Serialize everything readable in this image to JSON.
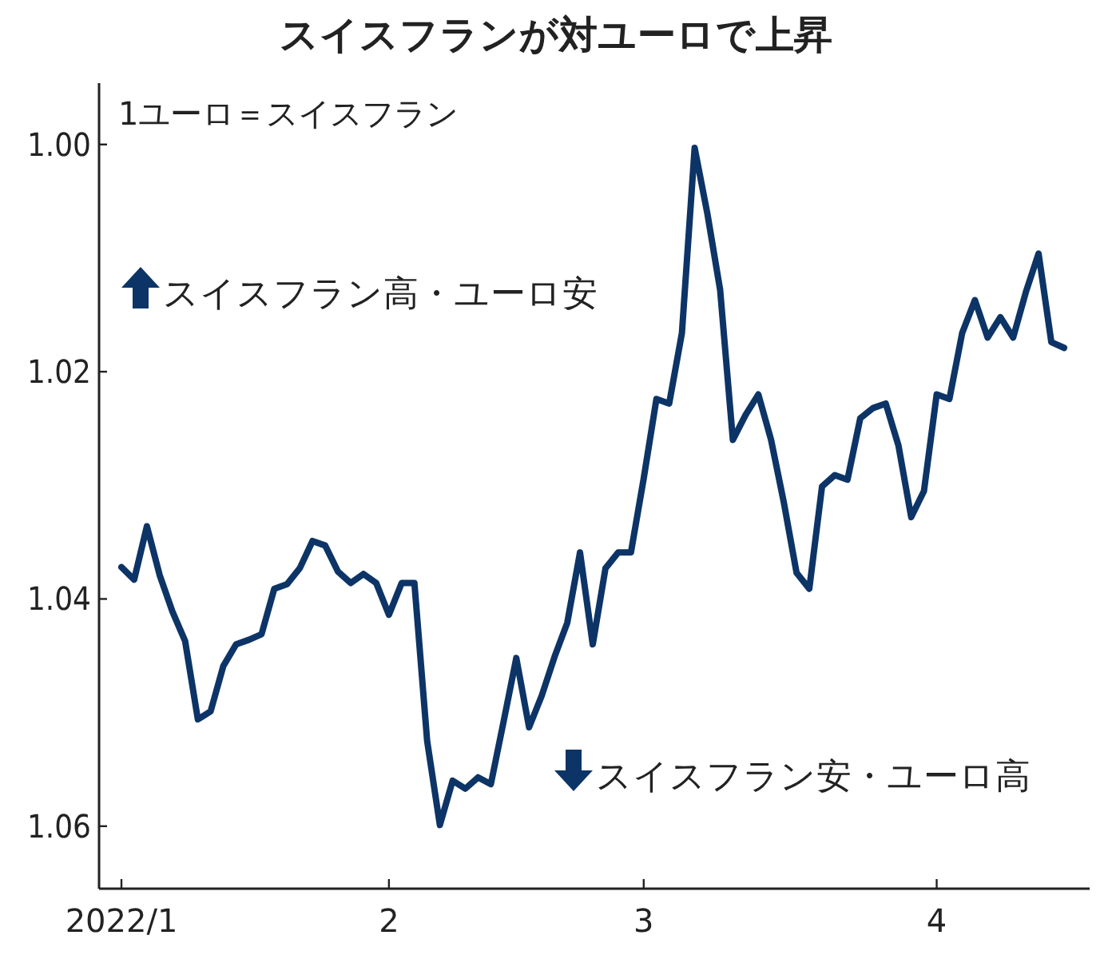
{
  "chart_data": {
    "type": "line",
    "title": "スイスフランが対ユーロで上昇",
    "subtitle": "1ユーロ＝スイスフラン",
    "annotations": [
      "スイスフラン高・ユーロ安",
      "スイスフラン安・ユーロ高"
    ],
    "categories": [
      "2022/1",
      null,
      null,
      null,
      null,
      null,
      null,
      null,
      null,
      null,
      null,
      null,
      null,
      null,
      null,
      null,
      null,
      null,
      null,
      null,
      null,
      "2",
      null,
      null,
      null,
      null,
      null,
      null,
      null,
      null,
      null,
      null,
      null,
      null,
      null,
      null,
      null,
      null,
      null,
      null,
      null,
      "3",
      null,
      null,
      null,
      null,
      null,
      null,
      null,
      null,
      null,
      null,
      null,
      null,
      null,
      null,
      null,
      null,
      null,
      null,
      null,
      null,
      null,
      null,
      "4",
      null,
      null,
      null,
      null,
      null,
      null,
      null,
      null,
      null,
      null
    ],
    "series": [
      {
        "color": "#0d3466",
        "values": [
          1.0372,
          1.0383,
          1.0336,
          1.0379,
          1.0411,
          1.0437,
          1.0506,
          1.0499,
          1.0459,
          1.044,
          1.0436,
          1.0431,
          1.0391,
          1.0387,
          1.0373,
          1.0349,
          1.0353,
          1.0376,
          1.0386,
          1.0378,
          1.0386,
          1.0414,
          1.0386,
          1.0386,
          1.0525,
          1.0599,
          1.056,
          1.0567,
          1.0557,
          1.0563,
          1.0508,
          1.0452,
          1.0513,
          1.0485,
          1.0451,
          1.0421,
          1.0359,
          1.044,
          1.0373,
          1.0359,
          1.0359,
          1.0294,
          1.0224,
          1.0228,
          1.0166,
          1.0003,
          1.0061,
          1.0128,
          1.026,
          1.0238,
          1.022,
          1.026,
          1.0315,
          1.0377,
          1.0391,
          1.0301,
          1.0291,
          1.0295,
          1.0241,
          1.0232,
          1.0228,
          1.0265,
          1.0328,
          1.0305,
          1.022,
          1.0224,
          1.0166,
          1.0137,
          1.017,
          1.0152,
          1.017,
          1.013,
          1.0096,
          1.0174,
          1.0179
        ]
      }
    ],
    "ylim": [
      1.0655,
      0.9946
    ],
    "yticks": [
      {
        "value": 1.0,
        "label": "1.00"
      },
      {
        "value": 1.02,
        "label": "1.02"
      },
      {
        "value": 1.04,
        "label": "1.04"
      },
      {
        "value": 1.06,
        "label": "1.06"
      }
    ],
    "grid": false,
    "marker": "none",
    "line_style": "solid"
  }
}
